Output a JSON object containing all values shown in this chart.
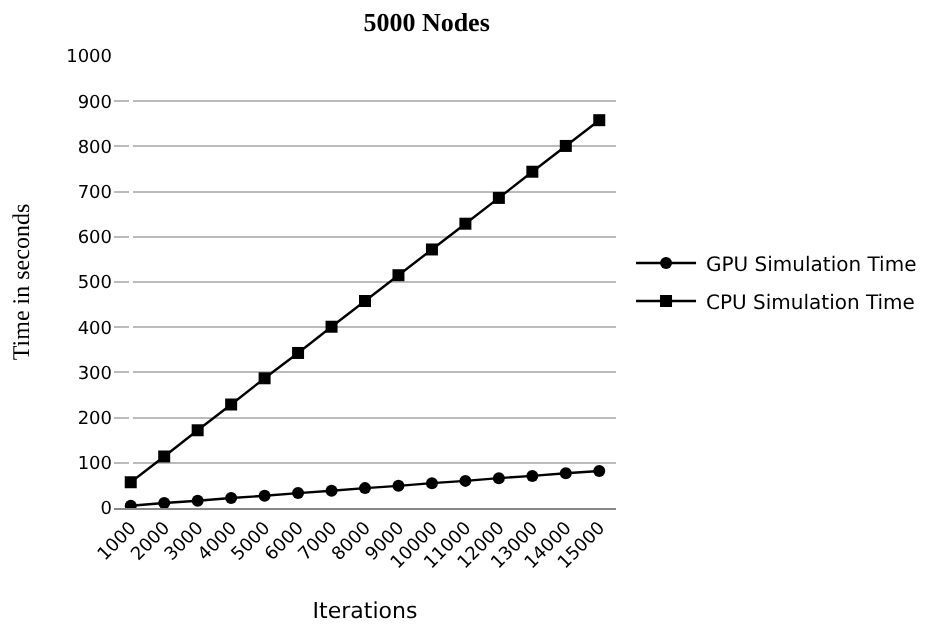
{
  "chart_data": {
    "type": "line",
    "title": "5000 Nodes",
    "xlabel": "Iterations",
    "ylabel": "Time in seconds",
    "categories": [
      "1000",
      "2000",
      "3000",
      "4000",
      "5000",
      "6000",
      "7000",
      "8000",
      "9000",
      "10000",
      "11000",
      "12000",
      "13000",
      "14000",
      "15000"
    ],
    "series": [
      {
        "name": "GPU Simulation Time",
        "color": "#000000",
        "marker": "circle",
        "values": [
          5,
          11,
          16,
          22,
          27,
          33,
          38,
          44,
          49,
          55,
          60,
          66,
          71,
          77,
          82
        ]
      },
      {
        "name": "CPU Simulation Time",
        "color": "#000000",
        "marker": "square",
        "values": [
          57,
          114,
          172,
          229,
          287,
          343,
          401,
          458,
          515,
          572,
          629,
          686,
          744,
          801,
          858
        ]
      }
    ],
    "ylim": [
      0,
      1000
    ],
    "yticks": [
      0,
      100,
      200,
      300,
      400,
      500,
      600,
      700,
      800,
      900,
      1000
    ],
    "grid": "y",
    "legend": "right"
  }
}
